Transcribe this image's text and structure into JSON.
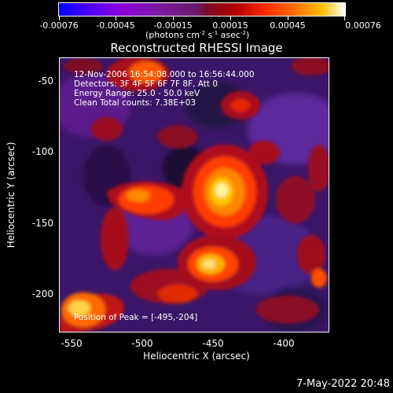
{
  "colorbar": {
    "tick_labels": [
      "-0.00076",
      "-0.00045",
      "-0.00015",
      "0.00015",
      "0.00045",
      "0.00076"
    ],
    "unit_label": "(photons cm",
    "unit_exp1": "-2",
    "unit_mid": " s",
    "unit_exp2": "-1",
    "unit_mid2": " asec",
    "unit_exp3": "-2",
    "unit_end": ")"
  },
  "title": "Reconstructed RHESSI Image",
  "overlay": {
    "line1": "12-Nov-2006 16:54:08.000 to 16:56:44.000",
    "line2": "Detectors: 3F 4F 5F 6F 7F 8F, Att 0",
    "line3": "Energy Range: 25.0 - 50.0 keV",
    "line4": "Clean     Total counts: 7.38E+03",
    "peak": "Position of Peak = [-495,-204]"
  },
  "axes": {
    "xlabel": "Heliocentric X (arcsec)",
    "ylabel": "Heliocentric Y (arcsec)",
    "xticks": [
      "-550",
      "-500",
      "-450",
      "-400"
    ],
    "yticks": [
      "-50",
      "-100",
      "-150",
      "-200"
    ]
  },
  "timestamp": "7-May-2022 20:48"
}
